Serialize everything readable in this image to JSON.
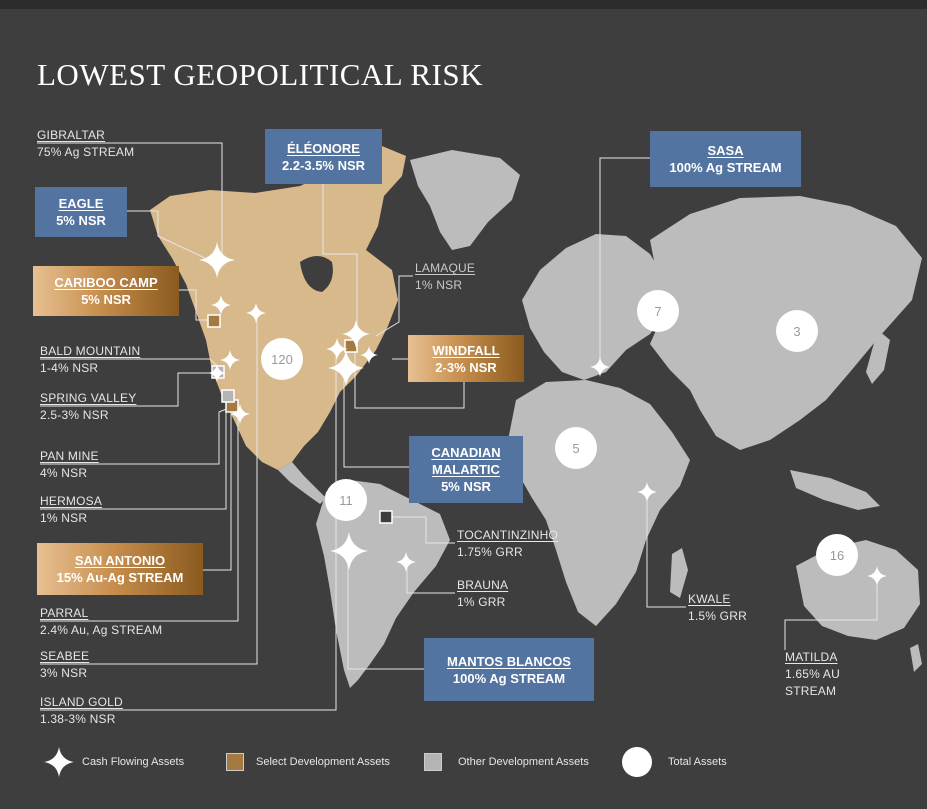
{
  "title": "LOWEST GEOPOLITICAL RISK",
  "colors": {
    "background": "#3e3e3f",
    "land": "#bcbcbc",
    "north_america": "#d8b98c",
    "blue_box": "#5374a1",
    "gold_box": "#c88f4e",
    "select_development": "#a37a40",
    "other_development": "#b4b4b4"
  },
  "labels": {
    "gibraltar": {
      "name": "GIBRALTAR",
      "detail": "75% Ag STREAM"
    },
    "eagle": {
      "name": "EAGLE",
      "detail": "5% NSR"
    },
    "cariboo_camp": {
      "name": "CARIBOO CAMP",
      "detail": "5% NSR"
    },
    "bald_mountain": {
      "name": "BALD MOUNTAIN",
      "detail": "1-4% NSR"
    },
    "spring_valley": {
      "name": "SPRING VALLEY",
      "detail": "2.5-3% NSR"
    },
    "pan_mine": {
      "name": "PAN MINE",
      "detail": "4% NSR"
    },
    "hermosa": {
      "name": "HERMOSA",
      "detail": "1% NSR"
    },
    "san_antonio": {
      "name": "SAN ANTONIO",
      "detail": "15% Au-Ag STREAM"
    },
    "parral": {
      "name": "PARRAL",
      "detail": "2.4% Au, Ag STREAM"
    },
    "seabee": {
      "name": "SEABEE",
      "detail": "3% NSR"
    },
    "island_gold": {
      "name": "ISLAND GOLD",
      "detail": "1.38-3% NSR"
    },
    "eleonore": {
      "name": "ÉLÉONORE",
      "detail": "2.2-3.5% NSR"
    },
    "lamaque": {
      "name": "LAMAQUE",
      "detail": "1% NSR"
    },
    "windfall": {
      "name": "WINDFALL",
      "detail": "2-3% NSR"
    },
    "canadian_malartic": {
      "name": "CANADIAN MALARTIC",
      "detail": "5% NSR"
    },
    "tocantinzinho": {
      "name": "TOCANTINZINHO",
      "detail": "1.75% GRR"
    },
    "brauna": {
      "name": "BRAUNA",
      "detail": "1% GRR"
    },
    "mantos_blancos": {
      "name": "MANTOS BLANCOS",
      "detail": "100% Ag STREAM"
    },
    "sasa": {
      "name": "SASA",
      "detail": "100% Ag STREAM"
    },
    "kwale": {
      "name": "KWALE",
      "detail": "1.5% GRR"
    },
    "matilda": {
      "name": "MATILDA",
      "detail": "1.65% AU STREAM"
    }
  },
  "totals": {
    "north_america": "120",
    "europe": "7",
    "asia": "3",
    "africa": "5",
    "south_america": "11",
    "australia": "16"
  },
  "legend": {
    "cash_flowing": "Cash Flowing Assets",
    "select_development": "Select Development Assets",
    "other_development": "Other Development Assets",
    "total_assets": "Total Assets"
  }
}
